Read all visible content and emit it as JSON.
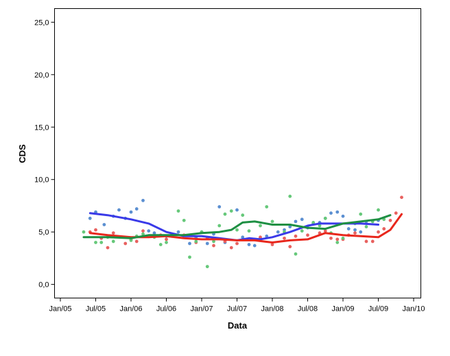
{
  "chart_data": {
    "type": "scatter",
    "title": "",
    "xlabel": "Data",
    "ylabel": "CDS",
    "x_ticks": [
      "Jan/05",
      "Jul/05",
      "Jan/06",
      "Jul/06",
      "Jan/07",
      "Jul/07",
      "Jan/08",
      "Jul/08",
      "Jan/09",
      "Jul/09",
      "Jan/10"
    ],
    "y_ticks": [
      "0,0",
      "5,0",
      "10,0",
      "15,0",
      "20,0",
      "25,0"
    ],
    "xlim": [
      "2005-01",
      "2010-01"
    ],
    "ylim": [
      -1.3,
      26.3
    ],
    "grid": false,
    "legend": "none",
    "series": [
      {
        "color": "#5b8fd1",
        "fit_color": "#3a3ae8",
        "points": [
          [
            2005.42,
            6.3
          ],
          [
            2005.5,
            6.9
          ],
          [
            2005.62,
            5.7
          ],
          [
            2005.75,
            6.5
          ],
          [
            2005.83,
            7.1
          ],
          [
            2005.92,
            6.3
          ],
          [
            2006.0,
            6.9
          ],
          [
            2006.08,
            7.2
          ],
          [
            2006.17,
            8.0
          ],
          [
            2006.25,
            5.1
          ],
          [
            2006.33,
            4.9
          ],
          [
            2006.5,
            4.6
          ],
          [
            2006.67,
            5.0
          ],
          [
            2006.83,
            3.9
          ],
          [
            2006.92,
            4.5
          ],
          [
            2007.0,
            5.0
          ],
          [
            2007.08,
            3.9
          ],
          [
            2007.17,
            4.8
          ],
          [
            2007.25,
            7.4
          ],
          [
            2007.33,
            4.0
          ],
          [
            2007.5,
            7.1
          ],
          [
            2007.58,
            4.5
          ],
          [
            2007.67,
            3.8
          ],
          [
            2007.75,
            3.7
          ],
          [
            2007.83,
            4.4
          ],
          [
            2007.92,
            4.6
          ],
          [
            2008.08,
            5.0
          ],
          [
            2008.17,
            5.2
          ],
          [
            2008.25,
            5.5
          ],
          [
            2008.33,
            6.0
          ],
          [
            2008.42,
            6.2
          ],
          [
            2008.5,
            5.4
          ],
          [
            2008.58,
            5.8
          ],
          [
            2008.67,
            5.9
          ],
          [
            2008.75,
            6.3
          ],
          [
            2008.83,
            6.8
          ],
          [
            2008.92,
            6.9
          ],
          [
            2009.0,
            6.5
          ],
          [
            2009.08,
            5.3
          ],
          [
            2009.17,
            5.2
          ],
          [
            2009.25,
            5.0
          ],
          [
            2009.33,
            6.0
          ],
          [
            2009.5,
            6.1
          ]
        ],
        "fit": [
          [
            2005.42,
            6.8
          ],
          [
            2005.67,
            6.6
          ],
          [
            2006.0,
            6.2
          ],
          [
            2006.25,
            5.8
          ],
          [
            2006.5,
            5.0
          ],
          [
            2006.75,
            4.6
          ],
          [
            2007.0,
            4.6
          ],
          [
            2007.25,
            4.4
          ],
          [
            2007.5,
            4.2
          ],
          [
            2007.67,
            4.4
          ],
          [
            2007.83,
            4.3
          ],
          [
            2008.0,
            4.5
          ],
          [
            2008.25,
            5.0
          ],
          [
            2008.5,
            5.6
          ],
          [
            2008.67,
            5.8
          ],
          [
            2009.0,
            5.8
          ],
          [
            2009.25,
            5.8
          ],
          [
            2009.5,
            5.7
          ]
        ]
      },
      {
        "color": "#e8615f",
        "fit_color": "#e8271c",
        "points": [
          [
            2005.42,
            5.0
          ],
          [
            2005.5,
            5.2
          ],
          [
            2005.58,
            4.4
          ],
          [
            2005.67,
            3.5
          ],
          [
            2005.75,
            4.9
          ],
          [
            2005.92,
            3.9
          ],
          [
            2006.0,
            4.3
          ],
          [
            2006.08,
            4.1
          ],
          [
            2006.17,
            5.1
          ],
          [
            2006.42,
            4.7
          ],
          [
            2006.5,
            4.3
          ],
          [
            2006.58,
            4.6
          ],
          [
            2006.75,
            4.7
          ],
          [
            2006.92,
            4.0
          ],
          [
            2007.08,
            4.4
          ],
          [
            2007.17,
            3.7
          ],
          [
            2007.33,
            4.1
          ],
          [
            2007.42,
            3.5
          ],
          [
            2007.5,
            3.9
          ],
          [
            2007.75,
            4.3
          ],
          [
            2007.83,
            4.5
          ],
          [
            2008.0,
            3.8
          ],
          [
            2008.17,
            4.4
          ],
          [
            2008.25,
            3.6
          ],
          [
            2008.33,
            4.6
          ],
          [
            2008.5,
            4.7
          ],
          [
            2008.67,
            4.9
          ],
          [
            2008.75,
            5.1
          ],
          [
            2008.83,
            4.4
          ],
          [
            2008.92,
            4.3
          ],
          [
            2009.0,
            4.3
          ],
          [
            2009.08,
            4.7
          ],
          [
            2009.17,
            4.9
          ],
          [
            2009.33,
            4.1
          ],
          [
            2009.42,
            4.1
          ],
          [
            2009.5,
            5.0
          ],
          [
            2009.58,
            5.3
          ],
          [
            2009.67,
            6.1
          ],
          [
            2009.75,
            6.8
          ],
          [
            2009.83,
            8.3
          ]
        ],
        "fit": [
          [
            2005.42,
            4.9
          ],
          [
            2005.67,
            4.7
          ],
          [
            2006.0,
            4.5
          ],
          [
            2006.25,
            4.5
          ],
          [
            2006.5,
            4.6
          ],
          [
            2006.75,
            4.4
          ],
          [
            2007.0,
            4.3
          ],
          [
            2007.25,
            4.3
          ],
          [
            2007.5,
            4.2
          ],
          [
            2007.75,
            4.2
          ],
          [
            2008.0,
            4.0
          ],
          [
            2008.25,
            4.2
          ],
          [
            2008.5,
            4.3
          ],
          [
            2008.75,
            4.9
          ],
          [
            2009.0,
            4.7
          ],
          [
            2009.25,
            4.6
          ],
          [
            2009.5,
            4.5
          ],
          [
            2009.67,
            5.2
          ],
          [
            2009.83,
            6.7
          ]
        ]
      },
      {
        "color": "#66c87a",
        "fit_color": "#1e8f43",
        "points": [
          [
            2005.33,
            5.0
          ],
          [
            2005.5,
            4.0
          ],
          [
            2005.58,
            4.0
          ],
          [
            2005.67,
            4.5
          ],
          [
            2005.75,
            4.1
          ],
          [
            2006.0,
            4.2
          ],
          [
            2006.08,
            4.6
          ],
          [
            2006.17,
            4.8
          ],
          [
            2006.33,
            4.5
          ],
          [
            2006.42,
            3.8
          ],
          [
            2006.5,
            4.0
          ],
          [
            2006.58,
            4.8
          ],
          [
            2006.67,
            7.0
          ],
          [
            2006.75,
            6.1
          ],
          [
            2006.83,
            2.6
          ],
          [
            2006.92,
            4.1
          ],
          [
            2007.0,
            5.0
          ],
          [
            2007.08,
            1.7
          ],
          [
            2007.17,
            4.1
          ],
          [
            2007.25,
            5.6
          ],
          [
            2007.33,
            6.7
          ],
          [
            2007.42,
            7.0
          ],
          [
            2007.5,
            5.2
          ],
          [
            2007.58,
            6.6
          ],
          [
            2007.67,
            5.1
          ],
          [
            2007.83,
            5.6
          ],
          [
            2007.92,
            7.4
          ],
          [
            2008.0,
            6.0
          ],
          [
            2008.17,
            5.0
          ],
          [
            2008.25,
            8.4
          ],
          [
            2008.33,
            2.9
          ],
          [
            2008.42,
            5.1
          ],
          [
            2008.58,
            5.9
          ],
          [
            2008.67,
            5.6
          ],
          [
            2008.75,
            6.3
          ],
          [
            2008.83,
            4.9
          ],
          [
            2008.92,
            4.0
          ],
          [
            2009.0,
            4.4
          ],
          [
            2009.17,
            5.8
          ],
          [
            2009.25,
            6.7
          ],
          [
            2009.33,
            5.5
          ],
          [
            2009.42,
            6.0
          ],
          [
            2009.5,
            7.1
          ],
          [
            2009.58,
            6.2
          ]
        ],
        "fit": [
          [
            2005.33,
            4.5
          ],
          [
            2005.67,
            4.5
          ],
          [
            2006.0,
            4.4
          ],
          [
            2006.25,
            4.7
          ],
          [
            2006.5,
            4.7
          ],
          [
            2006.75,
            4.7
          ],
          [
            2007.0,
            4.9
          ],
          [
            2007.25,
            5.0
          ],
          [
            2007.42,
            5.2
          ],
          [
            2007.58,
            5.9
          ],
          [
            2007.75,
            6.0
          ],
          [
            2008.0,
            5.7
          ],
          [
            2008.25,
            5.7
          ],
          [
            2008.5,
            5.4
          ],
          [
            2008.75,
            5.3
          ],
          [
            2009.0,
            5.8
          ],
          [
            2009.25,
            6.0
          ],
          [
            2009.5,
            6.2
          ],
          [
            2009.67,
            6.6
          ]
        ]
      }
    ]
  }
}
